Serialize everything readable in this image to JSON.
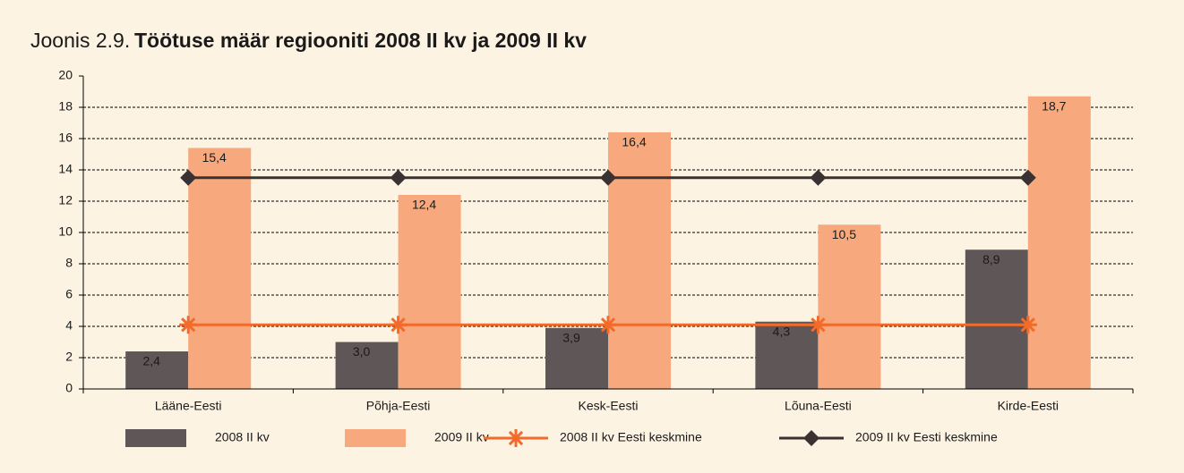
{
  "chart_data": {
    "type": "bar",
    "figure_label": "Joonis 2.9.",
    "title": "Töötuse määr regiooniti 2008 II kv ja 2009 II kv",
    "categories": [
      "Lääne-Eesti",
      "Põhja-Eesti",
      "Kesk-Eesti",
      "Lõuna-Eesti",
      "Kirde-Eesti"
    ],
    "series": [
      {
        "name": "2008 II kv",
        "type": "bar",
        "color": "#5f5657",
        "values": [
          2.4,
          3.0,
          3.9,
          4.3,
          8.9
        ],
        "value_labels": [
          "2,4",
          "3,0",
          "3,9",
          "4,3",
          "8,9"
        ]
      },
      {
        "name": "2009 II kv",
        "type": "bar",
        "color": "#f7a97d",
        "values": [
          15.4,
          12.4,
          16.4,
          10.5,
          18.7
        ],
        "value_labels": [
          "15,4",
          "12,4",
          "16,4",
          "10,5",
          "18,7"
        ]
      },
      {
        "name": "2008 II kv Eesti keskmine",
        "type": "line",
        "marker": "star",
        "color": "#f26b2b",
        "values": [
          4.1,
          4.1,
          4.1,
          4.1,
          4.1
        ]
      },
      {
        "name": "2009 II kv Eesti keskmine",
        "type": "line",
        "marker": "diamond",
        "color": "#3a3232",
        "values": [
          13.5,
          13.5,
          13.5,
          13.5,
          13.5
        ]
      }
    ],
    "ylim": [
      0,
      20
    ],
    "yticks": [
      0,
      2,
      4,
      6,
      8,
      10,
      12,
      14,
      16,
      18,
      20
    ],
    "grid": true,
    "legend": "bottom"
  }
}
